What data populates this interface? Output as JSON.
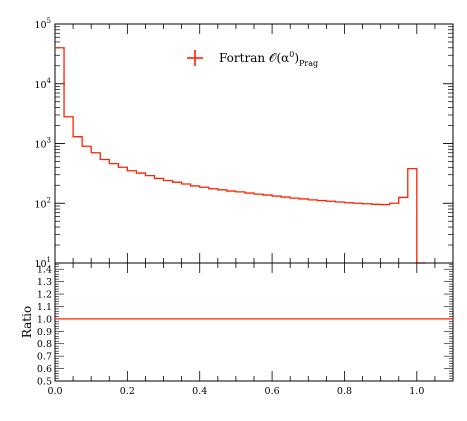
{
  "chart_data": [
    {
      "type": "line",
      "panel": "main",
      "yscale": "log",
      "ylim": [
        10,
        100000
      ],
      "xlim": [
        0.0,
        1.1
      ],
      "y_ticks": [
        {
          "value": 10,
          "base": "10",
          "exp": "1"
        },
        {
          "value": 100,
          "base": "10",
          "exp": "2"
        },
        {
          "value": 1000,
          "base": "10",
          "exp": "3"
        },
        {
          "value": 10000,
          "base": "10",
          "exp": "4"
        },
        {
          "value": 100000,
          "base": "10",
          "exp": "5"
        }
      ],
      "legend": {
        "text": "Fortran 𝒪(α",
        "superscript": "0",
        "close": ")",
        "subscript": "Prag",
        "placement": "top-center"
      },
      "series": [
        {
          "style": "histogram-step",
          "color": "#ff2200",
          "bin_edges": [
            0.0,
            0.025,
            0.05,
            0.075,
            0.1,
            0.125,
            0.15,
            0.175,
            0.2,
            0.225,
            0.25,
            0.275,
            0.3,
            0.325,
            0.35,
            0.375,
            0.4,
            0.425,
            0.45,
            0.475,
            0.5,
            0.525,
            0.55,
            0.575,
            0.6,
            0.625,
            0.65,
            0.675,
            0.7,
            0.725,
            0.75,
            0.775,
            0.8,
            0.825,
            0.85,
            0.875,
            0.9,
            0.925,
            0.95,
            0.975,
            1.0,
            1.025
          ],
          "values": [
            40000,
            2800,
            1300,
            900,
            700,
            540,
            460,
            400,
            350,
            320,
            290,
            260,
            240,
            225,
            210,
            195,
            185,
            175,
            168,
            160,
            155,
            148,
            142,
            137,
            132,
            127,
            122,
            118,
            114,
            111,
            108,
            105,
            102,
            100,
            98,
            96,
            95,
            100,
            125,
            380,
            0
          ]
        }
      ]
    },
    {
      "type": "line",
      "panel": "ratio",
      "ylabel": "Ratio",
      "ylim": [
        0.5,
        1.45
      ],
      "xlim": [
        0.0,
        1.1
      ],
      "y_tick_labels": [
        "0.5",
        "0.6",
        "0.7",
        "0.8",
        "0.9",
        "1.0",
        "1.1",
        "1.2",
        "1.3",
        "1.4"
      ],
      "x_tick_labels": [
        "0.0",
        "0.2",
        "0.4",
        "0.6",
        "0.8",
        "1.0"
      ],
      "series": [
        {
          "color": "#ff2200",
          "x": [
            0.0,
            1.1
          ],
          "y": [
            1.0,
            1.0
          ]
        }
      ]
    }
  ]
}
